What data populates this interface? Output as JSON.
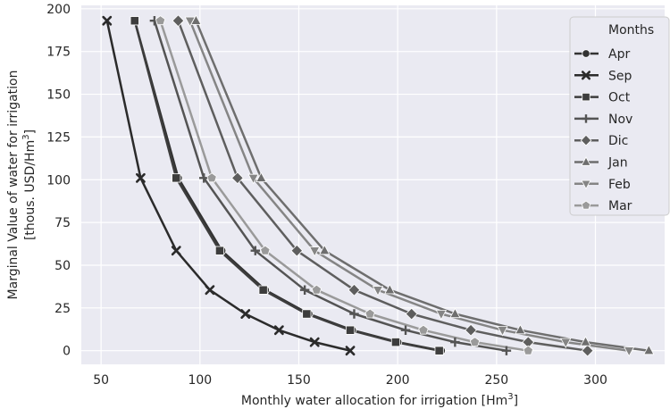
{
  "chart_data": {
    "type": "line",
    "xlabel": "Monthly water allocation for irrigation [Hm",
    "xlabel_sup": "3",
    "xlabel_end": "]",
    "ylabel_line1": "Marginal Value of water for irrigation",
    "ylabel_line2": "[thous. USD/Hm",
    "ylabel_sup": "3",
    "ylabel_end": "]",
    "xlim": [
      40,
      335
    ],
    "ylim": [
      -8,
      202
    ],
    "x_ticks": [
      50,
      100,
      150,
      200,
      250,
      300
    ],
    "y_ticks": [
      0,
      25,
      50,
      75,
      100,
      125,
      150,
      175,
      200
    ],
    "grid": true,
    "legend_title": "Months",
    "legend_position": "top-right",
    "series": [
      {
        "name": "Apr",
        "color": "#333333",
        "marker": "circle",
        "x": [
          67,
          89,
          111,
          133,
          155,
          177,
          200,
          222
        ],
        "y": [
          193,
          101,
          58.5,
          35.5,
          21.5,
          12,
          5,
          0
        ]
      },
      {
        "name": "Sep",
        "color": "#2b2b2b",
        "marker": "x",
        "x": [
          53,
          70,
          88,
          105,
          123,
          140,
          158,
          176
        ],
        "y": [
          193,
          101,
          58.5,
          35.5,
          21.5,
          12,
          5,
          0
        ]
      },
      {
        "name": "Oct",
        "color": "#3d3d3d",
        "marker": "square",
        "x": [
          67,
          88,
          110,
          132,
          154,
          176,
          199,
          221
        ],
        "y": [
          193,
          101,
          58.5,
          35.5,
          21.5,
          12,
          5,
          0
        ]
      },
      {
        "name": "Nov",
        "color": "#545454",
        "marker": "plus",
        "x": [
          77,
          102,
          128,
          153,
          178,
          204,
          229,
          255
        ],
        "y": [
          193,
          101,
          58.5,
          35.5,
          21.5,
          12,
          5,
          0
        ]
      },
      {
        "name": "Dic",
        "color": "#5e5e5e",
        "marker": "diamond",
        "x": [
          89,
          119,
          149,
          178,
          207,
          237,
          266,
          296
        ],
        "y": [
          193,
          101,
          58.5,
          35.5,
          21.5,
          12,
          5,
          0
        ]
      },
      {
        "name": "Jan",
        "color": "#6e6e6e",
        "marker": "triangle-up",
        "x": [
          98,
          131,
          163,
          196,
          229,
          262,
          295,
          327
        ],
        "y": [
          193,
          101,
          58.5,
          35.5,
          21.5,
          12,
          5,
          0
        ]
      },
      {
        "name": "Feb",
        "color": "#858585",
        "marker": "triangle-down",
        "x": [
          95,
          127,
          158,
          190,
          222,
          253,
          285,
          317
        ],
        "y": [
          193,
          101,
          58.5,
          35.5,
          21.5,
          12,
          5,
          0
        ]
      },
      {
        "name": "Mar",
        "color": "#9a9a9a",
        "marker": "pentagon",
        "x": [
          80,
          106,
          133,
          159,
          186,
          213,
          239,
          266
        ],
        "y": [
          193,
          101,
          58.5,
          35.5,
          21.5,
          12,
          5,
          0
        ]
      }
    ]
  }
}
